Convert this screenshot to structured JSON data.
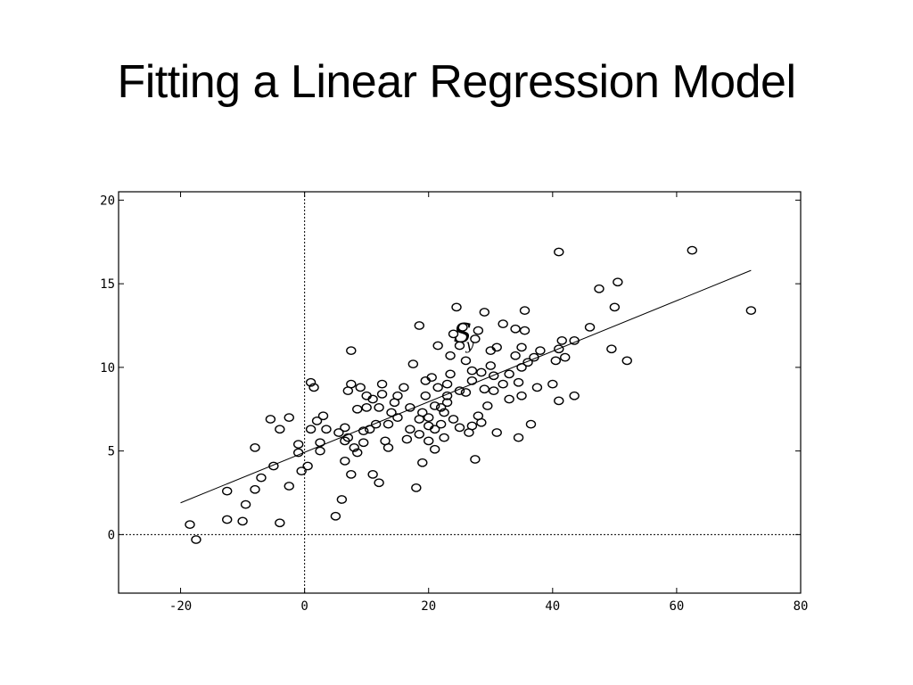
{
  "slide": {
    "title": "Fitting a Linear Regression Model"
  },
  "chart_data": {
    "type": "scatter",
    "title": "",
    "xlabel": "",
    "ylabel": "",
    "xlim": [
      -30,
      80
    ],
    "ylim": [
      -3.5,
      20.5
    ],
    "xticks": [
      -20,
      0,
      20,
      40,
      60,
      80
    ],
    "yticks": [
      0,
      5,
      10,
      15,
      20
    ],
    "x_tick_labels": [
      "-20",
      "0",
      "20",
      "40",
      "60",
      "80"
    ],
    "y_tick_labels": [
      "0",
      "5",
      "10",
      "15",
      "20"
    ],
    "grid": false,
    "reference_lines": {
      "x": 0,
      "y": 0,
      "style": "dotted"
    },
    "annotation": {
      "text": "S",
      "subscript": "y",
      "x": 24,
      "y": 11.5
    },
    "fit_line": {
      "x": [
        -20,
        72
      ],
      "y": [
        1.9,
        15.8
      ]
    },
    "points": [
      [
        -18.5,
        0.6
      ],
      [
        -17.5,
        -0.3
      ],
      [
        -12.5,
        0.9
      ],
      [
        -10,
        0.8
      ],
      [
        -4,
        0.7
      ],
      [
        -12.5,
        2.6
      ],
      [
        -9.5,
        1.8
      ],
      [
        -8,
        2.7
      ],
      [
        -7,
        3.4
      ],
      [
        -5,
        4.1
      ],
      [
        -8,
        5.2
      ],
      [
        -5.5,
        6.9
      ],
      [
        -4,
        6.3
      ],
      [
        -2.5,
        7.0
      ],
      [
        -2.5,
        2.9
      ],
      [
        -1,
        5.4
      ],
      [
        -1,
        4.9
      ],
      [
        -0.5,
        3.8
      ],
      [
        0.5,
        4.1
      ],
      [
        1,
        6.3
      ],
      [
        1,
        9.1
      ],
      [
        1.5,
        8.8
      ],
      [
        2,
        6.8
      ],
      [
        2.5,
        5.5
      ],
      [
        2.5,
        5.0
      ],
      [
        3,
        7.1
      ],
      [
        3.5,
        6.3
      ],
      [
        5,
        1.1
      ],
      [
        5.5,
        6.1
      ],
      [
        6,
        2.1
      ],
      [
        6.5,
        5.6
      ],
      [
        6.5,
        4.4
      ],
      [
        6.5,
        6.4
      ],
      [
        7,
        5.8
      ],
      [
        7,
        8.6
      ],
      [
        7.5,
        9.0
      ],
      [
        7.5,
        3.6
      ],
      [
        7.5,
        11.0
      ],
      [
        8,
        5.2
      ],
      [
        8.5,
        4.9
      ],
      [
        8.5,
        7.5
      ],
      [
        9,
        8.8
      ],
      [
        9.5,
        6.2
      ],
      [
        9.5,
        5.5
      ],
      [
        10,
        8.3
      ],
      [
        10,
        7.6
      ],
      [
        10.5,
        6.3
      ],
      [
        11,
        8.1
      ],
      [
        11,
        3.6
      ],
      [
        11.5,
        6.6
      ],
      [
        12,
        3.1
      ],
      [
        12,
        7.6
      ],
      [
        12.5,
        8.4
      ],
      [
        12.5,
        9.0
      ],
      [
        13,
        5.6
      ],
      [
        13.5,
        5.2
      ],
      [
        13.5,
        6.6
      ],
      [
        14,
        7.3
      ],
      [
        14.5,
        7.9
      ],
      [
        15,
        7.0
      ],
      [
        15,
        8.3
      ],
      [
        16,
        8.8
      ],
      [
        16.5,
        5.7
      ],
      [
        17,
        6.3
      ],
      [
        17,
        7.6
      ],
      [
        17.5,
        10.2
      ],
      [
        18,
        2.8
      ],
      [
        18.5,
        6.9
      ],
      [
        18.5,
        6.0
      ],
      [
        18.5,
        12.5
      ],
      [
        19,
        4.3
      ],
      [
        19,
        7.3
      ],
      [
        19.5,
        8.3
      ],
      [
        19.5,
        9.2
      ],
      [
        20,
        6.5
      ],
      [
        20,
        7.0
      ],
      [
        20,
        5.6
      ],
      [
        20.5,
        9.4
      ],
      [
        21,
        7.7
      ],
      [
        21,
        6.3
      ],
      [
        21,
        5.1
      ],
      [
        21.5,
        11.3
      ],
      [
        21.5,
        8.8
      ],
      [
        22,
        7.6
      ],
      [
        22,
        6.6
      ],
      [
        22.5,
        7.3
      ],
      [
        22.5,
        5.8
      ],
      [
        23,
        7.9
      ],
      [
        23,
        9.0
      ],
      [
        23,
        8.3
      ],
      [
        23.5,
        10.7
      ],
      [
        23.5,
        9.6
      ],
      [
        24,
        6.9
      ],
      [
        24,
        12.0
      ],
      [
        24.5,
        13.6
      ],
      [
        25,
        8.6
      ],
      [
        25,
        6.4
      ],
      [
        25,
        11.3
      ],
      [
        25.5,
        12.4
      ],
      [
        26,
        10.4
      ],
      [
        26,
        8.5
      ],
      [
        26.5,
        6.1
      ],
      [
        27,
        9.2
      ],
      [
        27,
        6.5
      ],
      [
        27.5,
        4.5
      ],
      [
        27.5,
        11.7
      ],
      [
        28,
        12.2
      ],
      [
        28,
        7.1
      ],
      [
        28.5,
        9.7
      ],
      [
        28.5,
        6.7
      ],
      [
        29,
        13.3
      ],
      [
        29,
        8.7
      ],
      [
        29.5,
        7.7
      ],
      [
        30,
        11.0
      ],
      [
        30,
        10.1
      ],
      [
        30.5,
        8.6
      ],
      [
        30.5,
        9.5
      ],
      [
        31,
        6.1
      ],
      [
        31,
        11.2
      ],
      [
        32,
        12.6
      ],
      [
        32,
        9.0
      ],
      [
        33,
        8.1
      ],
      [
        33,
        9.6
      ],
      [
        34,
        10.7
      ],
      [
        34,
        12.3
      ],
      [
        34.5,
        9.1
      ],
      [
        34.5,
        5.8
      ],
      [
        35,
        10.0
      ],
      [
        35,
        8.3
      ],
      [
        35,
        11.2
      ],
      [
        35.5,
        12.2
      ],
      [
        35.5,
        13.4
      ],
      [
        36,
        10.3
      ],
      [
        36.5,
        6.6
      ],
      [
        37,
        10.6
      ],
      [
        37.5,
        8.8
      ],
      [
        38,
        11.0
      ],
      [
        40,
        9.0
      ],
      [
        40.5,
        10.4
      ],
      [
        41,
        11.1
      ],
      [
        41,
        8.0
      ],
      [
        41,
        16.9
      ],
      [
        41.5,
        11.6
      ],
      [
        42,
        10.6
      ],
      [
        43.5,
        11.6
      ],
      [
        43.5,
        8.3
      ],
      [
        46,
        12.4
      ],
      [
        47.5,
        14.7
      ],
      [
        49.5,
        11.1
      ],
      [
        50,
        13.6
      ],
      [
        50.5,
        15.1
      ],
      [
        52,
        10.4
      ],
      [
        62.5,
        17.0
      ],
      [
        72,
        13.4
      ],
      [
        27,
        9.8
      ]
    ]
  }
}
